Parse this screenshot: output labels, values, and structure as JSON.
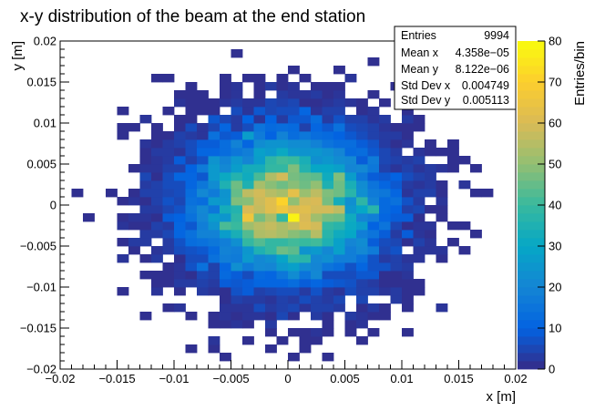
{
  "chart_data": {
    "type": "heatmap",
    "title": "x-y distribution of the beam at the end station",
    "xlabel": "x [m]",
    "ylabel": "y [m]",
    "zlabel": "Entries/bin",
    "xlim": [
      -0.02,
      0.02
    ],
    "ylim": [
      -0.02,
      0.02
    ],
    "zlim": [
      0,
      80
    ],
    "bins": 40,
    "x_ticks": [
      "-0.02",
      "-0.015",
      "-0.01",
      "-0.005",
      "0",
      "0.005",
      "0.01",
      "0.015",
      "0.02"
    ],
    "y_ticks": [
      "-0.02",
      "-0.015",
      "-0.01",
      "-0.005",
      "0",
      "0.005",
      "0.01",
      "0.015",
      "0.02"
    ],
    "z_ticks": [
      "0",
      "10",
      "20",
      "30",
      "40",
      "50",
      "60",
      "70",
      "80"
    ],
    "beam_profile": {
      "mean_x": 4.358e-05,
      "mean_y": 8.122e-06,
      "std_x": 0.004749,
      "std_y": 0.005113,
      "entries": 9994
    },
    "palette": [
      "#352a87",
      "#0363e1",
      "#1485d4",
      "#06a7c6",
      "#38b99e",
      "#92bf73",
      "#d9ba56",
      "#fcce2e",
      "#f9fb0e"
    ],
    "stats_box": {
      "entries_label": "Entries",
      "entries_value": "9994",
      "mean_x_label": "Mean x",
      "mean_x_value": "4.358e−05",
      "mean_y_label": "Mean y",
      "mean_y_value": "8.122e−06",
      "std_x_label": "Std Dev x",
      "std_x_value": "0.004749",
      "std_y_label": "Std Dev y",
      "std_y_value": "0.005113"
    }
  }
}
